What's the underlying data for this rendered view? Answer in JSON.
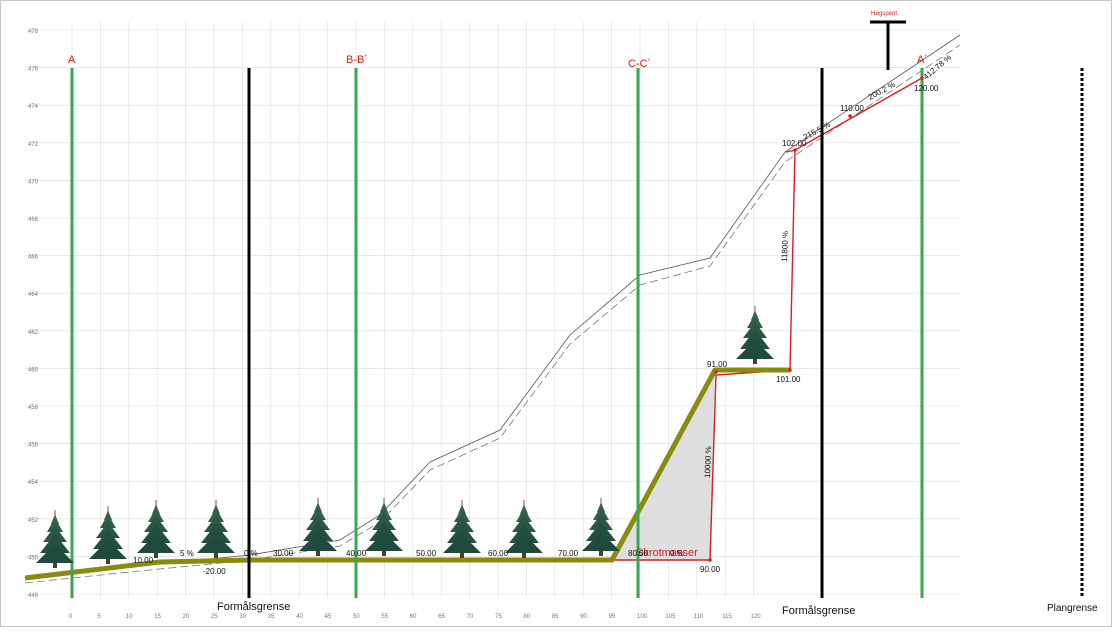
{
  "y_ticks": [
    "478",
    "476",
    "474",
    "472",
    "470",
    "468",
    "466",
    "464",
    "462",
    "460",
    "458",
    "456",
    "454",
    "452",
    "450",
    "448"
  ],
  "x_ticks": [
    "0",
    "5",
    "10",
    "15",
    "20",
    "25",
    "30",
    "35",
    "40",
    "45",
    "50",
    "55",
    "60",
    "65",
    "70",
    "75",
    "80",
    "85",
    "90",
    "95",
    "100",
    "105",
    "110",
    "115",
    "120"
  ],
  "section_labels": [
    "A",
    "B-B´",
    "C-C´",
    "A´"
  ],
  "boundary_labels": [
    "Formålsgrense",
    "Formålsgrense"
  ],
  "plan_boundary_label": "Plangrense",
  "top_marker_label": "Høgspent",
  "fill_label": "Skrotmasser",
  "station_labels": [
    "-20.00",
    "0.%",
    "30.00",
    "40.00",
    "50.00",
    "60.00",
    "70.00",
    "80.00",
    "90.00",
    "91.00",
    "101.00",
    "102.00",
    "110.00",
    "120.00",
    "10.00",
    "5 %",
    "0 %"
  ],
  "slope_labels": [
    "215.5 %",
    "200.2 %",
    "412.78 %",
    "11800 %",
    "10000 %"
  ],
  "colors": {
    "section_line": "#3aa655",
    "boundary_line": "#000000",
    "fill_outline": "#8a8a0e",
    "design_line": "#d81e1e",
    "label_red": "#d81e1e",
    "grid": "#dcdcdc",
    "tree": "#1f4a3e"
  }
}
